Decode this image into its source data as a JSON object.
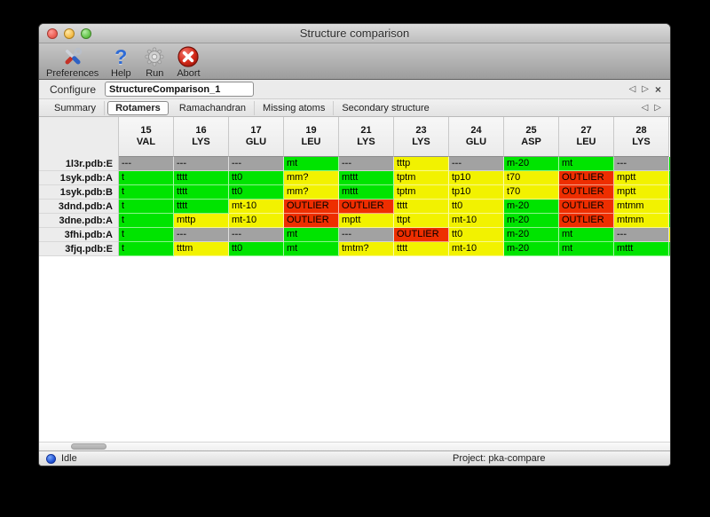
{
  "window": {
    "title": "Structure comparison"
  },
  "toolbar": {
    "buttons": [
      {
        "id": "preferences",
        "label": "Preferences"
      },
      {
        "id": "help",
        "label": "Help"
      },
      {
        "id": "run",
        "label": "Run"
      },
      {
        "id": "abort",
        "label": "Abort"
      }
    ]
  },
  "configure": {
    "label": "Configure",
    "value": "StructureComparison_1"
  },
  "tabs": {
    "items": [
      "Summary",
      "Rotamers",
      "Ramachandran",
      "Missing atoms",
      "Secondary structure"
    ],
    "selected": "Rotamers"
  },
  "colors": {
    "green": "#00e400",
    "yellow": "#f2f200",
    "red": "#ee2e00",
    "gray": "#a2a2a2"
  },
  "table": {
    "columns": [
      {
        "number": "15",
        "residue": "VAL"
      },
      {
        "number": "16",
        "residue": "LYS"
      },
      {
        "number": "17",
        "residue": "GLU"
      },
      {
        "number": "19",
        "residue": "LEU"
      },
      {
        "number": "21",
        "residue": "LYS"
      },
      {
        "number": "23",
        "residue": "LYS"
      },
      {
        "number": "24",
        "residue": "GLU"
      },
      {
        "number": "25",
        "residue": "ASP"
      },
      {
        "number": "27",
        "residue": "LEU"
      },
      {
        "number": "28",
        "residue": "LYS"
      }
    ],
    "rows": [
      {
        "label": "1l3r.pdb:E",
        "overflow_color": "green",
        "cells": [
          {
            "text": "---",
            "color": "gray"
          },
          {
            "text": "---",
            "color": "gray"
          },
          {
            "text": "---",
            "color": "gray"
          },
          {
            "text": "mt",
            "color": "green"
          },
          {
            "text": "---",
            "color": "gray"
          },
          {
            "text": "tttp",
            "color": "yellow"
          },
          {
            "text": "---",
            "color": "gray"
          },
          {
            "text": "m-20",
            "color": "green"
          },
          {
            "text": "mt",
            "color": "green"
          },
          {
            "text": "---",
            "color": "gray"
          }
        ]
      },
      {
        "label": "1syk.pdb:A",
        "overflow_color": "green",
        "cells": [
          {
            "text": "t",
            "color": "green",
            "clipped": true
          },
          {
            "text": "tttt",
            "color": "green"
          },
          {
            "text": "tt0",
            "color": "green"
          },
          {
            "text": "mm?",
            "color": "yellow"
          },
          {
            "text": "mttt",
            "color": "green"
          },
          {
            "text": "tptm",
            "color": "yellow"
          },
          {
            "text": "tp10",
            "color": "yellow"
          },
          {
            "text": "t70",
            "color": "yellow"
          },
          {
            "text": "OUTLIER",
            "color": "red"
          },
          {
            "text": "mptt",
            "color": "yellow"
          }
        ]
      },
      {
        "label": "1syk.pdb:B",
        "overflow_color": "green",
        "cells": [
          {
            "text": "t",
            "color": "green",
            "clipped": true
          },
          {
            "text": "tttt",
            "color": "green"
          },
          {
            "text": "tt0",
            "color": "green"
          },
          {
            "text": "mm?",
            "color": "yellow"
          },
          {
            "text": "mttt",
            "color": "green"
          },
          {
            "text": "tptm",
            "color": "yellow"
          },
          {
            "text": "tp10",
            "color": "yellow"
          },
          {
            "text": "t70",
            "color": "yellow"
          },
          {
            "text": "OUTLIER",
            "color": "red"
          },
          {
            "text": "mptt",
            "color": "yellow"
          }
        ]
      },
      {
        "label": "3dnd.pdb:A",
        "overflow_color": "green",
        "cells": [
          {
            "text": "t",
            "color": "green",
            "clipped": true
          },
          {
            "text": "tttt",
            "color": "green"
          },
          {
            "text": "mt-10",
            "color": "yellow"
          },
          {
            "text": "OUTLIER",
            "color": "red"
          },
          {
            "text": "OUTLIER",
            "color": "red"
          },
          {
            "text": "tttt",
            "color": "yellow"
          },
          {
            "text": "tt0",
            "color": "yellow"
          },
          {
            "text": "m-20",
            "color": "green"
          },
          {
            "text": "OUTLIER",
            "color": "red"
          },
          {
            "text": "mtmm",
            "color": "yellow"
          }
        ]
      },
      {
        "label": "3dne.pdb:A",
        "overflow_color": "green",
        "cells": [
          {
            "text": "t",
            "color": "green",
            "clipped": true
          },
          {
            "text": "mttp",
            "color": "yellow"
          },
          {
            "text": "mt-10",
            "color": "yellow"
          },
          {
            "text": "OUTLIER",
            "color": "red"
          },
          {
            "text": "mptt",
            "color": "yellow"
          },
          {
            "text": "ttpt",
            "color": "yellow"
          },
          {
            "text": "mt-10",
            "color": "yellow"
          },
          {
            "text": "m-20",
            "color": "green"
          },
          {
            "text": "OUTLIER",
            "color": "red"
          },
          {
            "text": "mtmm",
            "color": "yellow"
          }
        ]
      },
      {
        "label": "3fhi.pdb:A",
        "overflow_color": "yellow",
        "cells": [
          {
            "text": "t",
            "color": "green",
            "clipped": true
          },
          {
            "text": "---",
            "color": "gray"
          },
          {
            "text": "---",
            "color": "gray"
          },
          {
            "text": "mt",
            "color": "green"
          },
          {
            "text": "---",
            "color": "gray"
          },
          {
            "text": "OUTLIER",
            "color": "red"
          },
          {
            "text": "tt0",
            "color": "yellow"
          },
          {
            "text": "m-20",
            "color": "green"
          },
          {
            "text": "mt",
            "color": "green"
          },
          {
            "text": "---",
            "color": "gray"
          }
        ]
      },
      {
        "label": "3fjq.pdb:E",
        "overflow_color": "green",
        "cells": [
          {
            "text": "t",
            "color": "green",
            "clipped": true
          },
          {
            "text": "tttm",
            "color": "yellow"
          },
          {
            "text": "tt0",
            "color": "green"
          },
          {
            "text": "mt",
            "color": "green"
          },
          {
            "text": "tmtm?",
            "color": "yellow"
          },
          {
            "text": "tttt",
            "color": "yellow"
          },
          {
            "text": "mt-10",
            "color": "yellow"
          },
          {
            "text": "m-20",
            "color": "green"
          },
          {
            "text": "mt",
            "color": "green"
          },
          {
            "text": "mttt",
            "color": "green"
          }
        ]
      }
    ]
  },
  "status": {
    "state": "Idle",
    "project": "Project: pka-compare"
  }
}
